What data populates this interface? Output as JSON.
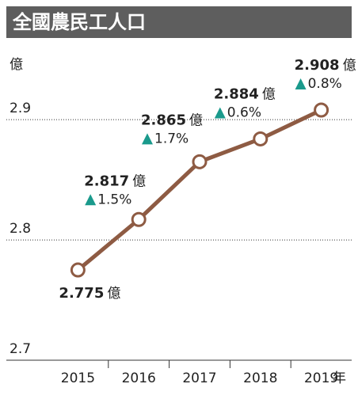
{
  "chart_data": {
    "type": "line",
    "title": "全國農民工人口",
    "y_label": "億",
    "x_label": "年",
    "unit": "億",
    "categories": [
      "2015",
      "2016",
      "2017",
      "2018",
      "2019"
    ],
    "values": [
      2.775,
      2.817,
      2.865,
      2.884,
      2.908
    ],
    "changes": [
      null,
      "1.5%",
      "1.7%",
      "0.6%",
      "0.8%"
    ],
    "color": "#8e5b43",
    "change_color": "#1a9a8c",
    "ylim": [
      2.7,
      2.96
    ],
    "yticks": [
      2.7,
      2.8,
      2.9
    ],
    "grid": true
  }
}
